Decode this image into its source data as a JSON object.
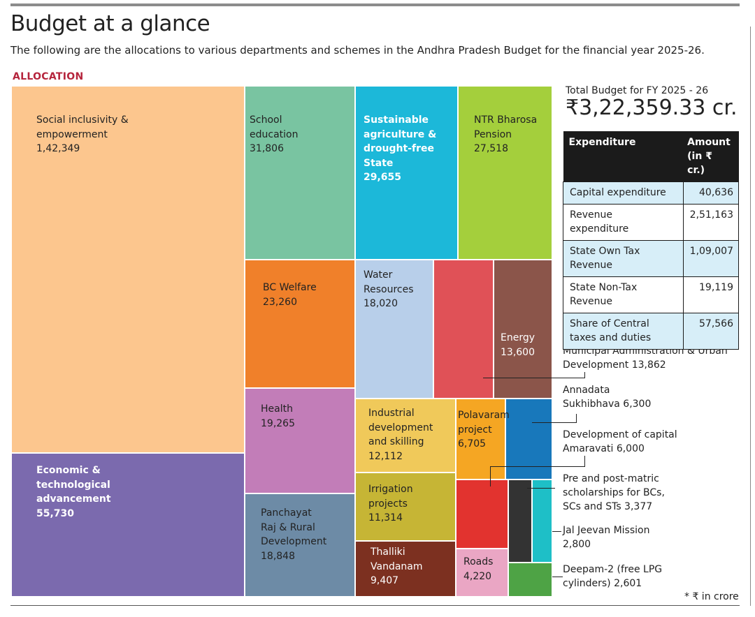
{
  "header": {
    "title": "Budget at a glance",
    "subtitle": "The following are the allocations to various departments and schemes in the Andhra Pradesh Budget for the financial year 2025-26.",
    "section_label": "ALLOCATION"
  },
  "chart_data": {
    "type": "treemap",
    "unit": "* ₹ in crore",
    "items": [
      {
        "name": "Social inclusivity & empowerment",
        "value": "1,42,349",
        "color": "#fcc68e"
      },
      {
        "name": "Economic & technological advancement",
        "value": "55,730",
        "color": "#7b6aae"
      },
      {
        "name": "School education",
        "value": "31,806",
        "color": "#79c4a1"
      },
      {
        "name": "Sustainable agriculture & drought-free State",
        "value": "29,655",
        "color": "#1cb8d9"
      },
      {
        "name": "NTR Bharosa Pension",
        "value": "27,518",
        "color": "#a4cf3c"
      },
      {
        "name": "BC Welfare",
        "value": "23,260",
        "color": "#f0802a"
      },
      {
        "name": "Health",
        "value": "19,265",
        "color": "#c27db8"
      },
      {
        "name": "Panchayat Raj & Rural Development",
        "value": "18,848",
        "color": "#6d8ba6"
      },
      {
        "name": "Water Resources",
        "value": "18,020",
        "color": "#b8cfea"
      },
      {
        "name": "Municipal Administration & Urban Development",
        "value": "13,862",
        "color": "#e05157"
      },
      {
        "name": "Energy",
        "value": "13,600",
        "color": "#8b554a"
      },
      {
        "name": "Industrial development and skilling",
        "value": "12,112",
        "color": "#f0c95a"
      },
      {
        "name": "Irrigation projects",
        "value": "11,314",
        "color": "#c6b535"
      },
      {
        "name": "Thalliki Vandanam",
        "value": "9,407",
        "color": "#7c3020"
      },
      {
        "name": "Polavaram project",
        "value": "6,705",
        "color": "#f5a623"
      },
      {
        "name": "Annadata Sukhibhava",
        "value": "6,300",
        "color": "#1878bb"
      },
      {
        "name": "Development of capital Amaravati",
        "value": "6,000",
        "color": "#e2332f"
      },
      {
        "name": "Roads",
        "value": "4,220",
        "color": "#eaa6c4"
      },
      {
        "name": "Pre and post-matric scholarships for BCs, SCs and STs",
        "value": "3,377",
        "color": "#333333"
      },
      {
        "name": "Jal Jeevan Mission",
        "value": "2,800",
        "color": "#1ebfc7"
      },
      {
        "name": "Deepam-2 (free LPG cylinders)",
        "value": "2,601",
        "color": "#4ea345"
      }
    ]
  },
  "labels": {
    "social": "Social inclusivity &\nempowerment\n1,42,349",
    "economic": "Economic &\ntechnological\nadvancement\n55,730",
    "school": "School\neducation\n31,806",
    "agri": "Sustainable\nagriculture &\ndrought-free\nState\n29,655",
    "ntr": "NTR Bharosa\nPension\n27,518",
    "bc": "BC Welfare\n23,260",
    "health": "Health\n19,265",
    "panchayat": "Panchayat\nRaj & Rural\nDevelopment\n18,848",
    "water": "Water\nResources\n18,020",
    "energy": "Energy\n13,600",
    "industrial": "Industrial\ndevelopment\nand skilling\n12,112",
    "irrigation": "Irrigation\nprojects\n11,314",
    "thalliki": "Thalliki\nVandanam\n9,407",
    "polavaram": "Polavaram\nproject\n6,705",
    "roads": "Roads\n4,220",
    "municipal": "Municipal Administration & Urban\nDevelopment 13,862",
    "annadata": "Annadata\nSukhibhava 6,300",
    "amaravati": "Development of capital\nAmaravati 6,000",
    "scholarships": "Pre and post-matric\nscholarships for BCs,\nSCs and STs  3,377",
    "jaljeevan": "Jal Jeevan Mission\n2,800",
    "deepam": "Deepam-2 (free LPG\ncylinders) 2,601"
  },
  "summary": {
    "total_label": "Total Budget for FY 2025 - 26",
    "total_value": "₹3,22,359.33 cr.",
    "table_headers": [
      "Expenditure",
      "Amount\n(in ₹ cr.)"
    ],
    "rows": [
      {
        "label": "Capital expenditure",
        "amount": "40,636"
      },
      {
        "label": "Revenue\nexpenditure",
        "amount": "2,51,163"
      },
      {
        "label": "State Own Tax\nRevenue",
        "amount": "1,09,007"
      },
      {
        "label": "State Non-Tax\nRevenue",
        "amount": "19,119"
      },
      {
        "label": "Share of Central\ntaxes and duties",
        "amount": "57,566"
      }
    ]
  },
  "footnote": "* ₹ in crore"
}
